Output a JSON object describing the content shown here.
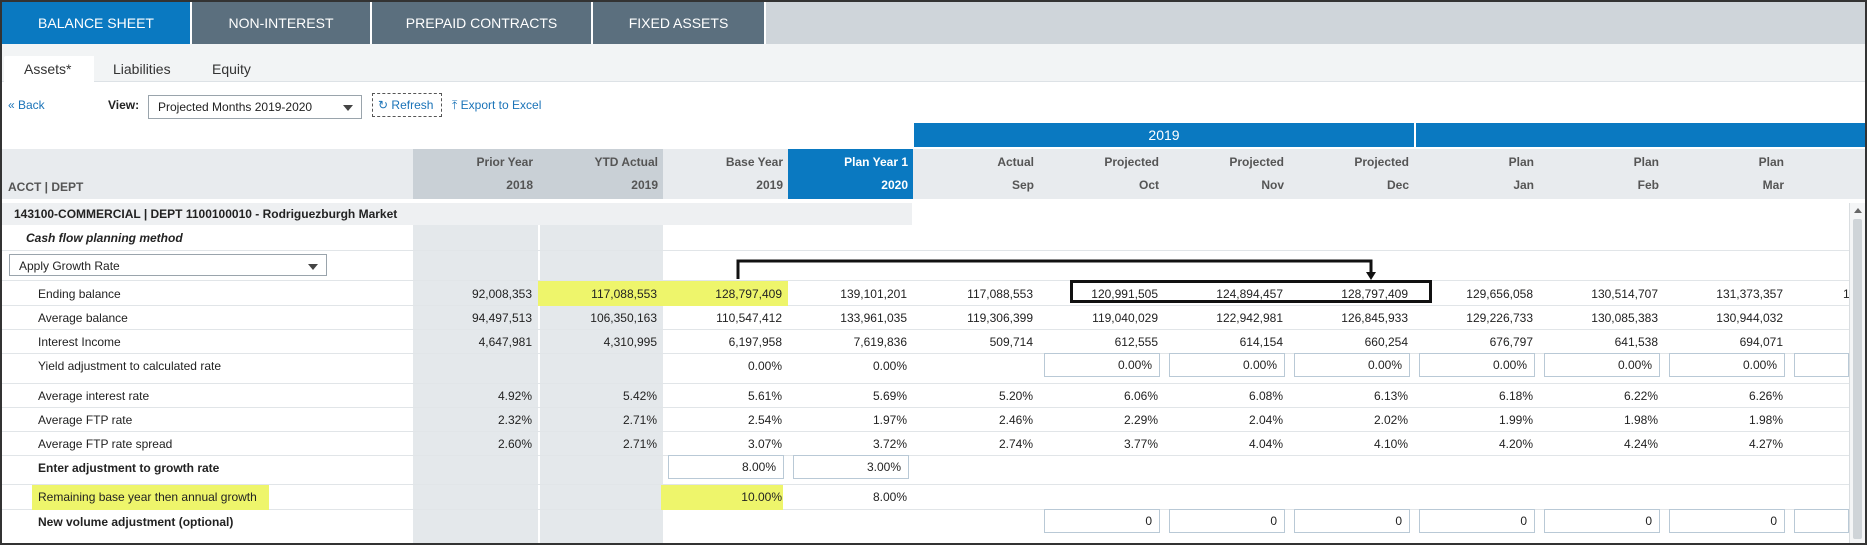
{
  "tabs": {
    "balance_sheet": "BALANCE SHEET",
    "non_interest": "NON-INTEREST",
    "prepaid_contracts": "PREPAID CONTRACTS",
    "fixed_assets": "FIXED ASSETS"
  },
  "subtabs": {
    "assets": "Assets*",
    "liabilities": "Liabilities",
    "equity": "Equity"
  },
  "toolbar": {
    "back": "« Back",
    "view_label": "View:",
    "view_value": "Projected Months 2019-2020",
    "refresh": "Refresh",
    "export": "Export to Excel"
  },
  "grid": {
    "year_label": "2019",
    "acct_dept_label": "ACCT | DEPT",
    "columns": [
      {
        "line1": "Prior Year",
        "line2": "2018"
      },
      {
        "line1": "YTD Actual",
        "line2": "2019"
      },
      {
        "line1": "Base Year",
        "line2": "2019"
      },
      {
        "line1": "Plan Year 1",
        "line2": "2020"
      },
      {
        "line1": "Actual",
        "line2": "Sep"
      },
      {
        "line1": "Projected",
        "line2": "Oct"
      },
      {
        "line1": "Projected",
        "line2": "Nov"
      },
      {
        "line1": "Projected",
        "line2": "Dec"
      },
      {
        "line1": "Plan",
        "line2": "Jan"
      },
      {
        "line1": "Plan",
        "line2": "Feb"
      },
      {
        "line1": "Plan",
        "line2": "Mar"
      }
    ],
    "section_title": "143100-COMMERCIAL | DEPT 1100100010 - Rodriguezburgh Market",
    "method_label": "Cash flow planning method",
    "method_value": "Apply Growth Rate",
    "rows": {
      "ending_balance": {
        "label": "Ending balance",
        "values": [
          "92,008,353",
          "117,088,553",
          "128,797,409",
          "139,101,201",
          "117,088,553",
          "120,991,505",
          "124,894,457",
          "128,797,409",
          "129,656,058",
          "130,514,707",
          "131,373,357"
        ],
        "overflow": "1"
      },
      "average_balance": {
        "label": "Average balance",
        "values": [
          "94,497,513",
          "106,350,163",
          "110,547,412",
          "133,961,035",
          "119,306,399",
          "119,040,029",
          "122,942,981",
          "126,845,933",
          "129,226,733",
          "130,085,383",
          "130,944,032"
        ]
      },
      "interest_income": {
        "label": "Interest Income",
        "values": [
          "4,647,981",
          "4,310,995",
          "6,197,958",
          "7,619,836",
          "509,714",
          "612,555",
          "614,154",
          "660,254",
          "676,797",
          "641,538",
          "694,071"
        ]
      },
      "yield_adjustment": {
        "label": "Yield adjustment to calculated rate",
        "values": [
          "0.00%",
          "0.00%"
        ],
        "inputs": [
          "0.00%",
          "0.00%",
          "0.00%",
          "0.00%",
          "0.00%",
          "0.00%"
        ]
      },
      "avg_interest_rate": {
        "label": "Average interest rate",
        "values": [
          "4.92%",
          "5.42%",
          "5.61%",
          "5.69%",
          "5.20%",
          "6.06%",
          "6.08%",
          "6.13%",
          "6.18%",
          "6.22%",
          "6.26%"
        ]
      },
      "avg_ftp_rate": {
        "label": "Average FTP rate",
        "values": [
          "2.32%",
          "2.71%",
          "2.54%",
          "1.97%",
          "2.46%",
          "2.29%",
          "2.04%",
          "2.02%",
          "1.99%",
          "1.98%",
          "1.98%"
        ]
      },
      "avg_ftp_spread": {
        "label": "Average FTP rate spread",
        "values": [
          "2.60%",
          "2.71%",
          "3.07%",
          "3.72%",
          "2.74%",
          "3.77%",
          "4.04%",
          "4.10%",
          "4.20%",
          "4.24%",
          "4.27%"
        ]
      },
      "growth_adjustment": {
        "label": "Enter adjustment to growth rate",
        "inputs": [
          "8.00%",
          "3.00%"
        ]
      },
      "remaining_growth": {
        "label": "Remaining base year then annual growth",
        "values": [
          "10.00%",
          "8.00%"
        ]
      },
      "new_volume": {
        "label": "New volume adjustment (optional)",
        "inputs": [
          "0",
          "0",
          "0",
          "0",
          "0",
          "0"
        ]
      }
    }
  },
  "colors": {
    "tab_active": "#0a79c1",
    "tab_inactive": "#5b6f7e",
    "highlight": "#eef56b",
    "link": "#1a73b8"
  }
}
